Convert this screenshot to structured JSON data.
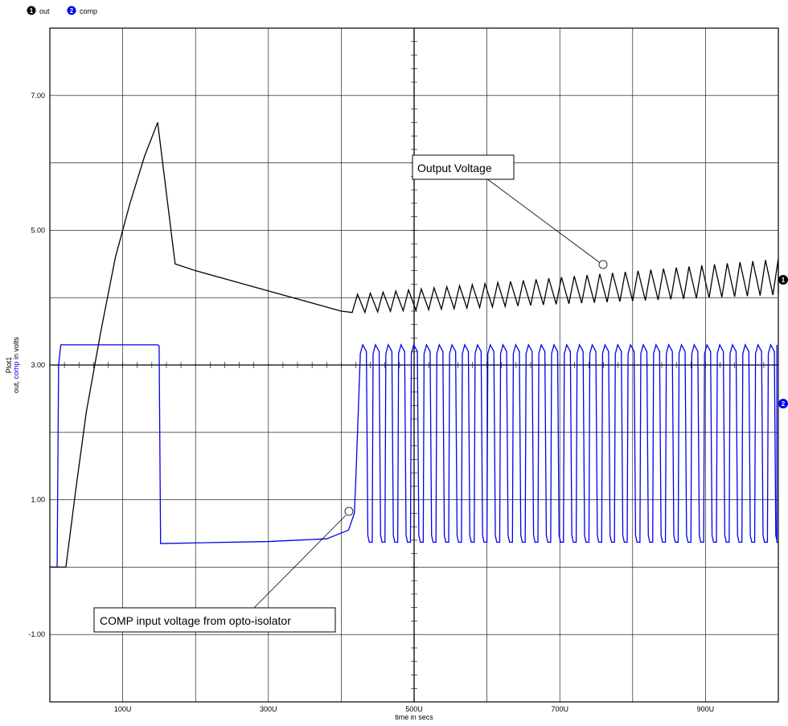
{
  "chart_data": {
    "type": "line",
    "plot_name": "Plot1",
    "xlabel": "time in secs",
    "ylabel_prefix": "out, ",
    "ylabel_series": "comp",
    "ylabel_suffix": " in volts",
    "xlim": [
      0,
      1000
    ],
    "ylim": [
      -2,
      8
    ],
    "x_ticks": [
      {
        "value": 100,
        "label": "100U"
      },
      {
        "value": 300,
        "label": "300U"
      },
      {
        "value": 500,
        "label": "500U"
      },
      {
        "value": 700,
        "label": "700U"
      },
      {
        "value": 900,
        "label": "900U"
      }
    ],
    "y_ticks": [
      {
        "value": -1,
        "label": "-1.00"
      },
      {
        "value": 1,
        "label": "1.00"
      },
      {
        "value": 3,
        "label": "3.00"
      },
      {
        "value": 5,
        "label": "5.00"
      },
      {
        "value": 7,
        "label": "7.00"
      }
    ],
    "grid": true,
    "legend_position": "top-left",
    "series": [
      {
        "id": 1,
        "name": "out",
        "color": "#000000",
        "x": [
          0,
          22,
          35,
          50,
          70,
          90,
          110,
          130,
          148,
          172,
          200,
          250,
          300,
          350,
          400,
          415
        ],
        "y": [
          0,
          0,
          1.1,
          2.3,
          3.5,
          4.6,
          5.4,
          6.1,
          6.6,
          4.5,
          4.4,
          4.25,
          4.1,
          3.95,
          3.8,
          3.78
        ],
        "oscillation": {
          "x_start": 415,
          "x_end": 1000,
          "period": 17.5,
          "low_start": 3.78,
          "low_end": 4.05,
          "high_start": 4.05,
          "high_end": 4.58
        }
      },
      {
        "id": 2,
        "name": "comp",
        "color": "#0000ee",
        "x": [
          0,
          10,
          12,
          15,
          148,
          150,
          152,
          200,
          300,
          380,
          410,
          418,
          420
        ],
        "y": [
          0,
          0,
          3.0,
          3.3,
          3.3,
          3.28,
          0.35,
          0.36,
          0.38,
          0.42,
          0.55,
          0.8,
          1.3
        ],
        "oscillation": {
          "x_start": 425,
          "x_end": 998,
          "period": 17.5,
          "low": 0.37,
          "high": 3.3
        }
      }
    ],
    "annotations": [
      {
        "text": "Output Voltage",
        "target": [
          765,
          4.55
        ]
      },
      {
        "text": "COMP input voltage from opto-isolator",
        "target": [
          412,
          0.84
        ]
      }
    ]
  },
  "legend": [
    {
      "num": "1",
      "label": "out",
      "color": "#000000"
    },
    {
      "num": "2",
      "label": "comp",
      "color": "#0000ee"
    }
  ]
}
